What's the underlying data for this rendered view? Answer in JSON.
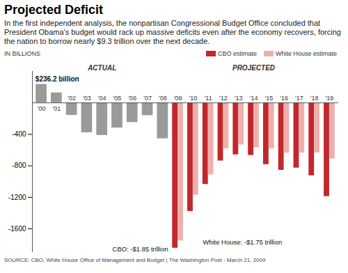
{
  "chart_data": {
    "type": "bar",
    "title": "Projected Deficit",
    "subtitle": "In the first independent analysis, the nonpartisan Congressional Budget Office concluded that President Obama's budget would rack up massive deficits even after the economy recovers, forcing the nation to borrow nearly $9.3 trillion over the next decade.",
    "ylabel": "IN BILLIONS",
    "source": "SOURCE: CBO, White House Office of Management and Budget | The Washington Post - March 21, 2009",
    "categories": [
      "'00",
      "'01",
      "'02",
      "'03",
      "'04",
      "'05",
      "'06",
      "'07",
      "'08",
      "'09",
      "'10",
      "'11",
      "'12",
      "'13",
      "'14",
      "'15",
      "'16",
      "'17",
      "'18",
      "'19"
    ],
    "series": [
      {
        "name": "ACTUAL",
        "color": "#9a9a9a",
        "values": [
          236.2,
          128.2,
          -157.8,
          -377.6,
          -412.7,
          -318.3,
          -248.2,
          -160.7,
          -454.8,
          null,
          null,
          null,
          null,
          null,
          null,
          null,
          null,
          null,
          null,
          null
        ]
      },
      {
        "name": "CBO estimate",
        "color": "#c1272d",
        "values": [
          null,
          null,
          null,
          null,
          null,
          null,
          null,
          null,
          null,
          -1845,
          -1379,
          -1035,
          -737,
          -659,
          -666,
          -783,
          -855,
          -827,
          -925,
          -1189
        ]
      },
      {
        "name": "White House estimate",
        "color": "#eeb0ac",
        "values": [
          null,
          null,
          null,
          null,
          null,
          null,
          null,
          null,
          null,
          -1752,
          -1171,
          -912,
          -581,
          -533,
          -570,
          -583,
          -637,
          -636,
          -634,
          -712
        ]
      }
    ],
    "annotations": [
      {
        "text": "PROJECTED",
        "x": "'14"
      },
      {
        "text": "$236.2 billion",
        "x": "'00",
        "y": 236.2
      },
      {
        "text": "CBO: -$1.85 trillion",
        "x": "'09",
        "y": -1845
      },
      {
        "text": "White House: -$1.75 trillion",
        "x": "'10",
        "y": -1752
      }
    ],
    "ylim": [
      -1900,
      400
    ],
    "yticks": [
      -400,
      -800,
      -1200,
      -1600
    ],
    "grid": false,
    "legend": "top-right"
  }
}
